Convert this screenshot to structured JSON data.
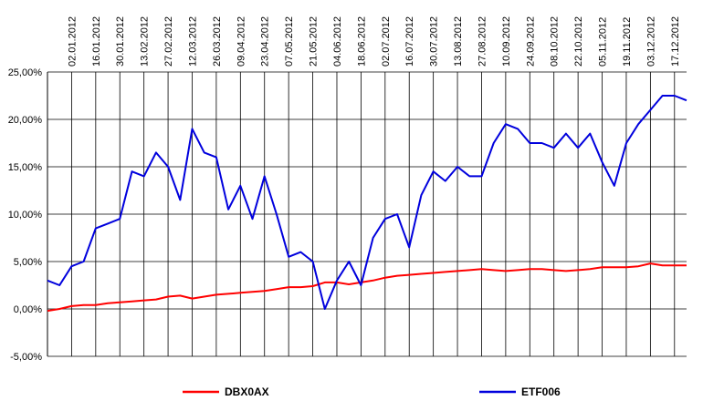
{
  "chart_data": {
    "type": "line",
    "x": [
      "19.12.2011",
      "26.12.2011",
      "02.01.2012",
      "09.01.2012",
      "16.01.2012",
      "23.01.2012",
      "30.01.2012",
      "06.02.2012",
      "13.02.2012",
      "20.02.2012",
      "27.02.2012",
      "05.03.2012",
      "12.03.2012",
      "19.03.2012",
      "26.03.2012",
      "02.04.2012",
      "09.04.2012",
      "16.04.2012",
      "23.04.2012",
      "30.04.2012",
      "07.05.2012",
      "14.05.2012",
      "21.05.2012",
      "28.05.2012",
      "04.06.2012",
      "11.06.2012",
      "18.06.2012",
      "25.06.2012",
      "02.07.2012",
      "09.07.2012",
      "16.07.2012",
      "23.07.2012",
      "30.07.2012",
      "06.08.2012",
      "13.08.2012",
      "20.08.2012",
      "27.08.2012",
      "03.09.2012",
      "10.09.2012",
      "17.09.2012",
      "24.09.2012",
      "01.10.2012",
      "08.10.2012",
      "15.10.2012",
      "22.10.2012",
      "29.10.2012",
      "05.11.2012",
      "12.11.2012",
      "19.11.2012",
      "26.11.2012",
      "03.12.2012",
      "10.12.2012",
      "17.12.2012",
      "24.12.2012"
    ],
    "series": [
      {
        "name": "DBX0AX",
        "color": "#ff0000",
        "values": [
          -0.2,
          0.0,
          0.3,
          0.4,
          0.4,
          0.6,
          0.7,
          0.8,
          0.9,
          1.0,
          1.3,
          1.4,
          1.1,
          1.3,
          1.5,
          1.6,
          1.7,
          1.8,
          1.9,
          2.1,
          2.3,
          2.3,
          2.4,
          2.8,
          2.8,
          2.6,
          2.8,
          3.0,
          3.3,
          3.5,
          3.6,
          3.7,
          3.8,
          3.9,
          4.0,
          4.1,
          4.2,
          4.1,
          4.0,
          4.1,
          4.2,
          4.2,
          4.1,
          4.0,
          4.1,
          4.2,
          4.4,
          4.4,
          4.4,
          4.5,
          4.8,
          4.6,
          4.6,
          4.6
        ]
      },
      {
        "name": "ETF006",
        "color": "#0000dd",
        "values": [
          3.0,
          2.5,
          4.5,
          5.0,
          8.5,
          9.0,
          9.5,
          14.5,
          14.0,
          16.5,
          15.0,
          11.5,
          19.0,
          16.5,
          16.0,
          10.5,
          13.0,
          9.5,
          14.0,
          10.0,
          5.5,
          6.0,
          5.0,
          0.0,
          3.0,
          5.0,
          2.5,
          7.5,
          9.5,
          10.0,
          6.5,
          12.0,
          14.5,
          13.5,
          15.0,
          14.0,
          14.0,
          17.5,
          19.5,
          19.0,
          17.5,
          17.5,
          17.0,
          18.5,
          17.0,
          18.5,
          15.5,
          13.0,
          17.5,
          19.5,
          21.0,
          22.5,
          22.5,
          22.0
        ]
      }
    ],
    "xlim": [
      "19.12.2011",
      "24.12.2012"
    ],
    "xticks": [
      "02.01.2012",
      "16.01.2012",
      "30.01.2012",
      "13.02.2012",
      "27.02.2012",
      "12.03.2012",
      "26.03.2012",
      "09.04.2012",
      "23.04.2012",
      "07.05.2012",
      "21.05.2012",
      "04.06.2012",
      "18.06.2012",
      "02.07.2012",
      "16.07.2012",
      "30.07.2012",
      "13.08.2012",
      "27.08.2012",
      "10.09.2012",
      "24.09.2012",
      "08.10.2012",
      "22.10.2012",
      "05.11.2012",
      "19.11.2012",
      "03.12.2012",
      "17.12.2012"
    ],
    "ylim": [
      -5,
      25
    ],
    "yticks": [
      {
        "value": -5,
        "label": "-5,00%"
      },
      {
        "value": 0,
        "label": "0,00%"
      },
      {
        "value": 5,
        "label": "5,00%"
      },
      {
        "value": 10,
        "label": "10,00%"
      },
      {
        "value": 15,
        "label": "15,00%"
      },
      {
        "value": 20,
        "label": "20,00%"
      },
      {
        "value": 25,
        "label": "25,00%"
      }
    ],
    "grid": true
  }
}
